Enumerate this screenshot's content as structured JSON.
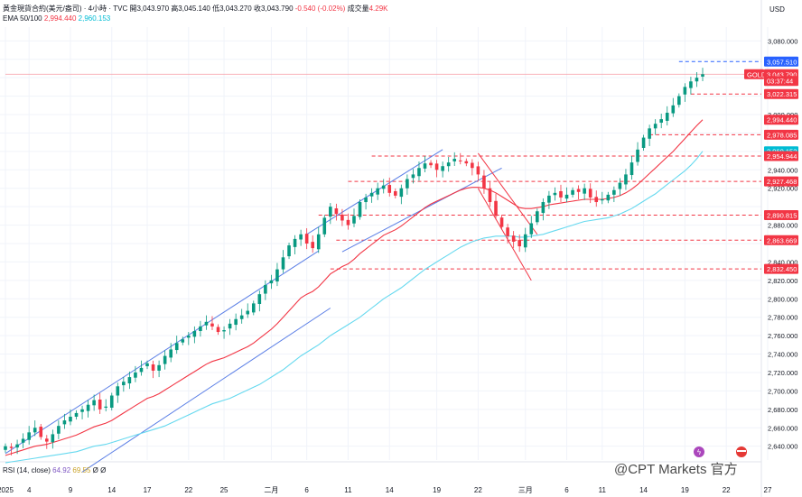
{
  "header": {
    "line1_title": "黃金現貨合約(美元/盎司) · 4小時 · TVC",
    "open_label": "開",
    "open_value": "3,043.970",
    "high_label": "高",
    "high_value": "3,045.140",
    "low_label": "低",
    "low_value": "3,043.270",
    "close_label": "收",
    "close_value": "3,043.790",
    "change": "-0.540 (-0.02%)",
    "volume_label": "成交量",
    "volume_value": "4.29K",
    "ema_label": "EMA 50/100",
    "ema50_value": "2,994.440",
    "ema100_value": "2,960.153"
  },
  "currency": "USD",
  "rsi": {
    "label": "RSI (14, close)",
    "value1": "64.92",
    "value2": "69.55",
    "v3": "Ø",
    "v4": "Ø"
  },
  "watermark": "@CPT Markets 官方",
  "colors": {
    "up": "#089981",
    "down": "#f23645",
    "channel": "#5b7fe6",
    "ema50": "#f23645",
    "ema100": "#66d9ef",
    "level": "#f23645",
    "price_label": "#f23645",
    "blue_label": "#2962ff",
    "cyan_label": "#00bcd4"
  },
  "chart_data": {
    "type": "candlestick",
    "symbol": "GOLD",
    "timeframe": "4小時",
    "y_range": [
      2625,
      3095
    ],
    "y_ticks": [
      3080,
      3060,
      3040,
      3020,
      3000,
      2980,
      2960,
      2940,
      2920,
      2900,
      2880,
      2860,
      2840,
      2820,
      2800,
      2780,
      2760,
      2740,
      2720,
      2700,
      2680,
      2660,
      2640
    ],
    "y_tick_labels": [
      "3,080.000",
      "",
      "",
      "",
      "3,000.000",
      "",
      "",
      "2,940.000",
      "2,920.000",
      "",
      "2,880.000",
      "",
      "2,840.000",
      "2,820.000",
      "2,800.000",
      "2,780.000",
      "2,760.000",
      "2,740.000",
      "2,720.000",
      "2,700.000",
      "2,680.000",
      "2,660.000",
      "2,640.000"
    ],
    "x_labels": [
      "2025",
      "4",
      "9",
      "14",
      "17",
      "22",
      "25",
      "二月",
      "6",
      "11",
      "14",
      "19",
      "22",
      "三月",
      "6",
      "11",
      "14",
      "19",
      "22",
      "27"
    ],
    "x_label_index": [
      0,
      4,
      11,
      18,
      24,
      31,
      37,
      45,
      51,
      58,
      65,
      73,
      80,
      88,
      95,
      101,
      108,
      115,
      122,
      129
    ],
    "price_labels": [
      {
        "text": "3,057.510",
        "price": 3057.51,
        "style": "blue"
      },
      {
        "text": "GOLD",
        "price": 3043.79,
        "style": "red"
      },
      {
        "text": "3,043.790",
        "price": 3043.79,
        "style": "red"
      },
      {
        "text": "03:37:44",
        "price": 3036.5,
        "style": "red"
      },
      {
        "text": "3,022.315",
        "price": 3022.315,
        "style": "red"
      },
      {
        "text": "2,994.440",
        "price": 2994.44,
        "style": "red"
      },
      {
        "text": "2,978.085",
        "price": 2978.085,
        "style": "red"
      },
      {
        "text": "2,960.153",
        "price": 2960.153,
        "style": "cyan"
      },
      {
        "text": "2,954.944",
        "price": 2954.944,
        "style": "red"
      },
      {
        "text": "2,927.468",
        "price": 2927.468,
        "style": "red"
      },
      {
        "text": "2,890.815",
        "price": 2890.815,
        "style": "red"
      },
      {
        "text": "2,863.669",
        "price": 2863.669,
        "style": "red"
      },
      {
        "text": "2,832.450",
        "price": 2832.45,
        "style": "red"
      }
    ],
    "horizontal_levels": [
      {
        "price": 3057.51,
        "from_index": 114,
        "style": "blue-dashed"
      },
      {
        "price": 3043.79,
        "from_index": 0,
        "style": "thin-solid"
      },
      {
        "price": 3022.315,
        "from_index": 116,
        "style": "dashed"
      },
      {
        "price": 2978.085,
        "from_index": 109,
        "style": "dashed"
      },
      {
        "price": 2954.944,
        "from_index": 62,
        "style": "dashed"
      },
      {
        "price": 2927.468,
        "from_index": 58,
        "style": "dashed"
      },
      {
        "price": 2890.815,
        "from_index": 53,
        "style": "dashed"
      },
      {
        "price": 2863.669,
        "from_index": 56,
        "style": "dashed"
      },
      {
        "price": 2832.45,
        "from_index": 55,
        "style": "dashed"
      }
    ],
    "trend_lines": [
      {
        "from": [
          0,
          2632
        ],
        "to": [
          53,
          2852
        ],
        "color": "channel"
      },
      {
        "from": [
          13,
          2612
        ],
        "to": [
          55,
          2790
        ],
        "color": "channel"
      },
      {
        "from": [
          51,
          2870
        ],
        "to": [
          74,
          2962
        ],
        "color": "channel"
      },
      {
        "from": [
          57,
          2851
        ],
        "to": [
          84,
          2942
        ],
        "color": "channel"
      },
      {
        "from": [
          80,
          2958
        ],
        "to": [
          90,
          2870
        ],
        "color": "down"
      },
      {
        "from": [
          80,
          2920
        ],
        "to": [
          89,
          2820
        ],
        "color": "down"
      }
    ],
    "close_series": [
      2640,
      2638,
      2642,
      2648,
      2655,
      2660,
      2650,
      2645,
      2653,
      2662,
      2668,
      2672,
      2676,
      2680,
      2685,
      2690,
      2680,
      2683,
      2695,
      2705,
      2710,
      2715,
      2720,
      2725,
      2730,
      2722,
      2728,
      2738,
      2745,
      2752,
      2756,
      2760,
      2765,
      2770,
      2775,
      2770,
      2764,
      2766,
      2773,
      2778,
      2782,
      2787,
      2795,
      2805,
      2815,
      2820,
      2832,
      2845,
      2858,
      2865,
      2870,
      2860,
      2855,
      2870,
      2888,
      2900,
      2892,
      2885,
      2880,
      2890,
      2905,
      2910,
      2915,
      2920,
      2923,
      2915,
      2912,
      2920,
      2930,
      2935,
      2942,
      2947,
      2945,
      2940,
      2944,
      2948,
      2952,
      2950,
      2947,
      2942,
      2935,
      2920,
      2905,
      2890,
      2878,
      2868,
      2862,
      2857,
      2870,
      2882,
      2895,
      2905,
      2912,
      2915,
      2910,
      2913,
      2918,
      2916,
      2920,
      2910,
      2905,
      2908,
      2913,
      2918,
      2926,
      2935,
      2948,
      2962,
      2975,
      2985,
      2990,
      2995,
      3002,
      3010,
      3020,
      3030,
      3036,
      3040,
      3043.79
    ],
    "ema50_series": [
      2630,
      2632,
      2634,
      2636,
      2638,
      2640,
      2641,
      2642,
      2644,
      2646,
      2648,
      2650,
      2652,
      2655,
      2658,
      2661,
      2663,
      2665,
      2668,
      2672,
      2676,
      2680,
      2684,
      2688,
      2692,
      2694,
      2697,
      2701,
      2705,
      2709,
      2713,
      2717,
      2721,
      2725,
      2729,
      2732,
      2734,
      2736,
      2739,
      2742,
      2745,
      2748,
      2752,
      2757,
      2762,
      2767,
      2773,
      2780,
      2787,
      2794,
      2801,
      2805,
      2808,
      2813,
      2820,
      2827,
      2831,
      2835,
      2838,
      2843,
      2849,
      2854,
      2859,
      2864,
      2869,
      2872,
      2875,
      2879,
      2884,
      2889,
      2894,
      2899,
      2903,
      2906,
      2909,
      2912,
      2915,
      2918,
      2920,
      2921,
      2921,
      2920,
      2918,
      2915,
      2911,
      2907,
      2903,
      2899,
      2898,
      2898,
      2899,
      2900,
      2902,
      2903,
      2904,
      2905,
      2906,
      2907,
      2908,
      2908,
      2908,
      2908,
      2909,
      2910,
      2912,
      2915,
      2919,
      2924,
      2930,
      2936,
      2942,
      2948,
      2954,
      2960,
      2967,
      2974,
      2981,
      2988,
      2994.44
    ],
    "ema100_series": [
      2622,
      2623,
      2624,
      2625,
      2626,
      2627,
      2628,
      2629,
      2630,
      2631,
      2632,
      2633,
      2634,
      2636,
      2638,
      2640,
      2641,
      2642,
      2644,
      2646,
      2648,
      2650,
      2652,
      2654,
      2656,
      2658,
      2660,
      2662,
      2665,
      2668,
      2671,
      2674,
      2677,
      2680,
      2683,
      2686,
      2688,
      2690,
      2692,
      2695,
      2698,
      2701,
      2704,
      2707,
      2711,
      2715,
      2719,
      2723,
      2728,
      2733,
      2738,
      2742,
      2746,
      2750,
      2755,
      2760,
      2764,
      2768,
      2772,
      2776,
      2780,
      2785,
      2790,
      2795,
      2800,
      2804,
      2808,
      2812,
      2817,
      2822,
      2827,
      2832,
      2836,
      2840,
      2844,
      2848,
      2852,
      2856,
      2859,
      2862,
      2864,
      2866,
      2867,
      2868,
      2868,
      2868,
      2868,
      2867,
      2867,
      2868,
      2869,
      2870,
      2872,
      2874,
      2876,
      2878,
      2880,
      2882,
      2884,
      2885,
      2886,
      2887,
      2888,
      2890,
      2892,
      2895,
      2898,
      2902,
      2906,
      2910,
      2914,
      2919,
      2924,
      2929,
      2934,
      2939,
      2945,
      2952,
      2960.153
    ]
  }
}
